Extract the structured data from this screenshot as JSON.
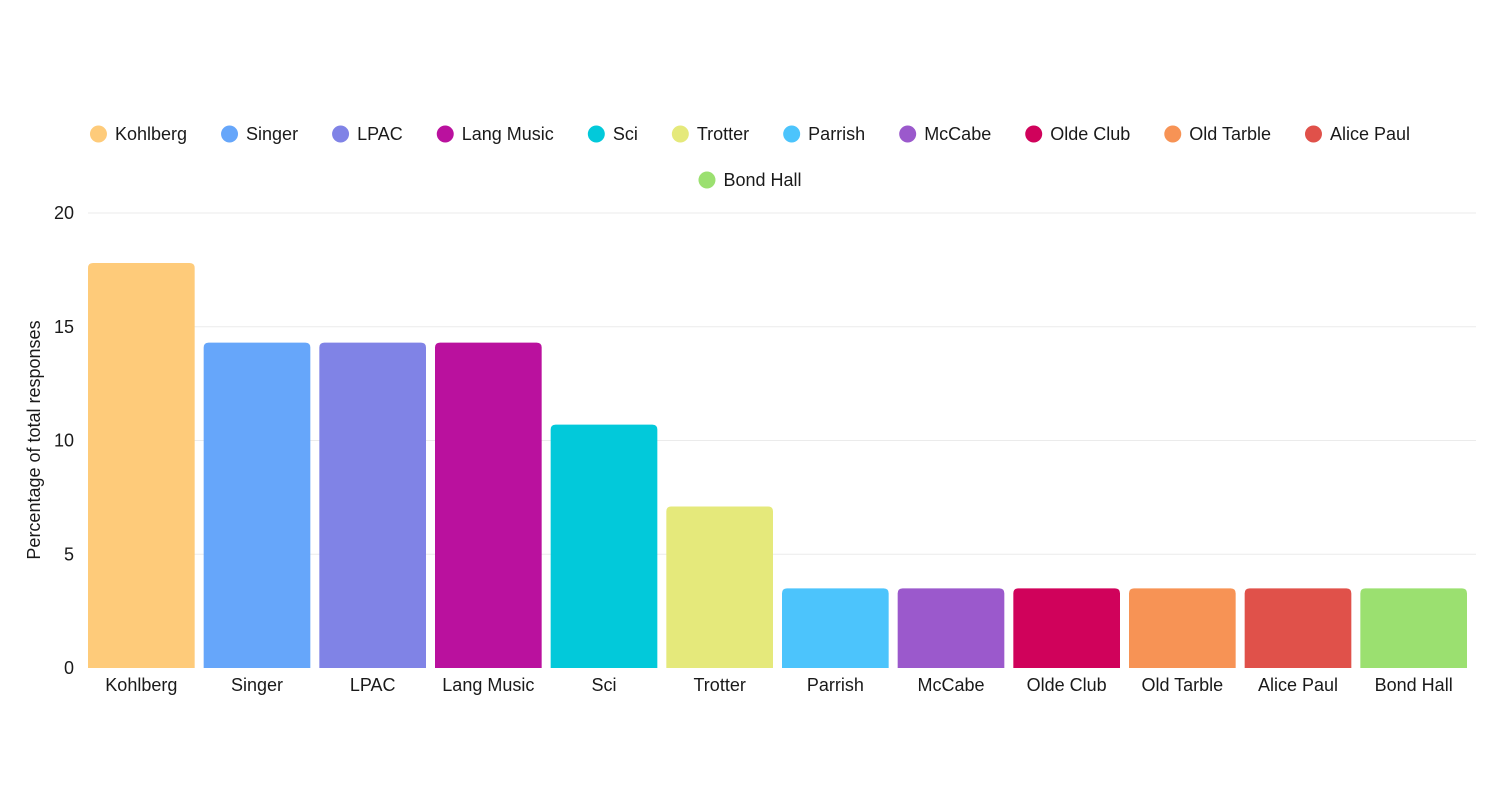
{
  "chart_data": {
    "type": "bar",
    "title": "",
    "xlabel": "",
    "ylabel": "Percentage of total responses",
    "ylim": [
      0,
      20
    ],
    "yticks": [
      0,
      5,
      10,
      15,
      20
    ],
    "grid": true,
    "legend_position": "top",
    "categories": [
      "Kohlberg",
      "Singer",
      "LPAC",
      "Lang Music",
      "Sci",
      "Trotter",
      "Parrish",
      "McCabe",
      "Olde Club",
      "Old Tarble",
      "Alice Paul",
      "Bond Hall"
    ],
    "values": [
      17.8,
      14.3,
      14.3,
      14.3,
      10.7,
      7.1,
      3.5,
      3.5,
      3.5,
      3.5,
      3.5,
      3.5
    ],
    "colors": [
      "#fecb7a",
      "#66a6fa",
      "#8083e6",
      "#ba119e",
      "#02c9da",
      "#e5e97b",
      "#4cc4fc",
      "#9b59cc",
      "#d0025b",
      "#f79355",
      "#e0514a",
      "#9be070"
    ],
    "legend": [
      "Kohlberg",
      "Singer",
      "LPAC",
      "Lang Music",
      "Sci",
      "Trotter",
      "Parrish",
      "McCabe",
      "Olde Club",
      "Old Tarble",
      "Alice Paul",
      "Bond Hall"
    ]
  }
}
